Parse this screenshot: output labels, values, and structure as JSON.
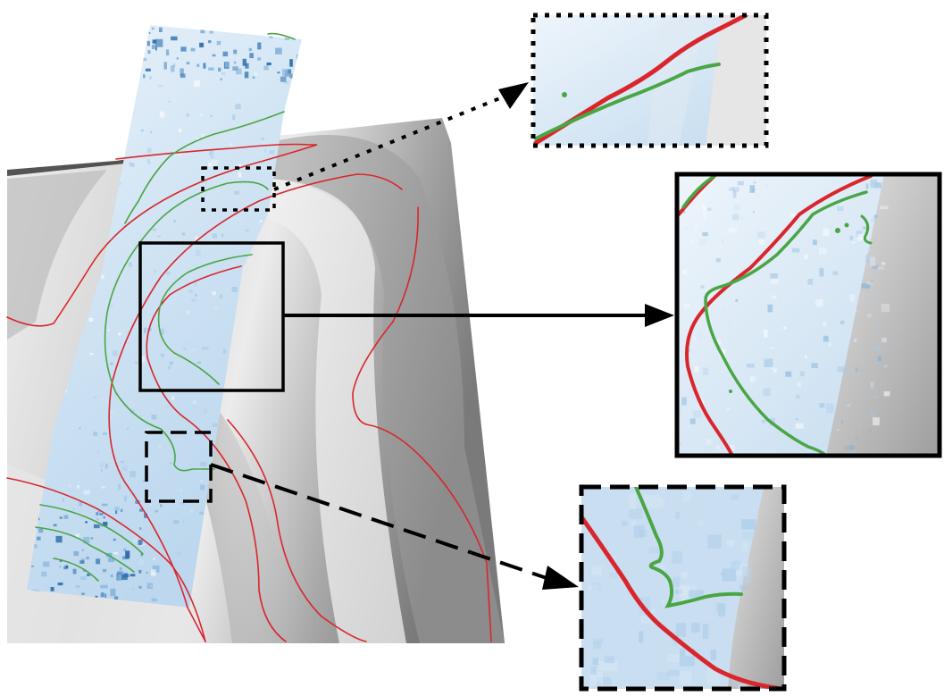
{
  "figure": {
    "type": "map-comparison-with-zoom-insets",
    "background_color": "#ffffff",
    "layers": {
      "hillshade_dem": {
        "kind": "grayscale-relief",
        "light_color": "#f0f0f0",
        "dark_color": "#7a7a7a"
      },
      "swath_image": {
        "kind": "blue-tinted-relief",
        "light_color": "#eaf3fb",
        "mid_color": "#bcd7ee",
        "dark_color": "#2a6aa8"
      }
    },
    "line_series": [
      {
        "color": "#d9262c",
        "role": "contour-set-a"
      },
      {
        "color": "#4aa545",
        "role": "contour-set-b"
      }
    ],
    "callouts": [
      {
        "frame_style": "dotted",
        "zoom_detail": "upper"
      },
      {
        "frame_style": "solid",
        "zoom_detail": "middle"
      },
      {
        "frame_style": "dashed",
        "zoom_detail": "lower"
      }
    ],
    "connector_color": "#000000",
    "icons": [
      "arrowhead-icon"
    ]
  }
}
